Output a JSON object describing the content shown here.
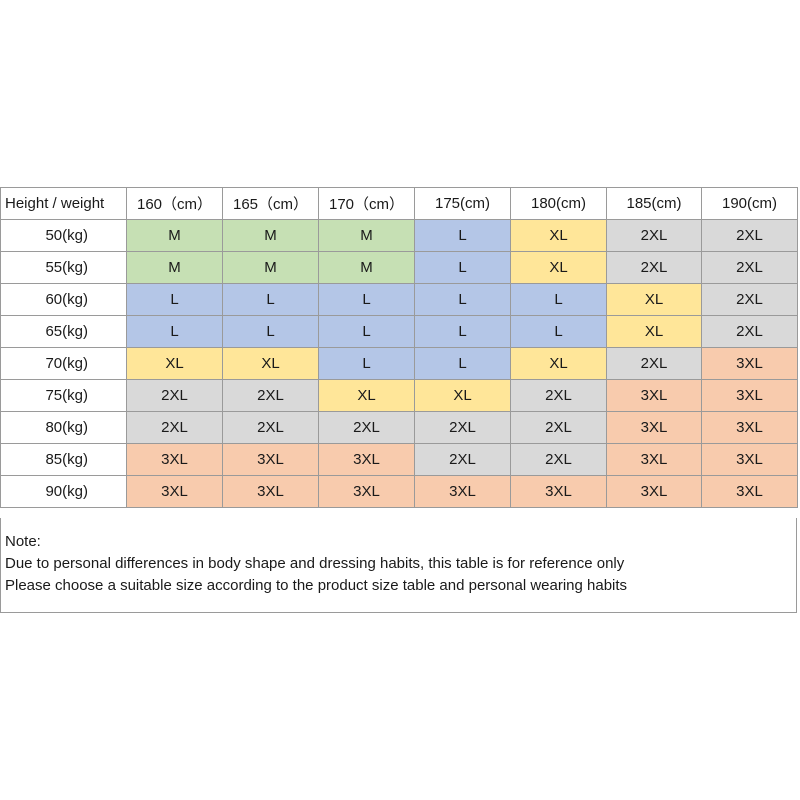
{
  "colors": {
    "M": "#c6e0b4",
    "L": "#b4c6e7",
    "XL": "#ffe699",
    "2XL": "#d9d9d9",
    "3XL": "#f8cbad"
  },
  "table": {
    "corner": "Height / weight",
    "columns": [
      "160（cm）",
      "165（cm）",
      "170（cm）",
      "175(cm)",
      "180(cm)",
      "185(cm)",
      "190(cm)"
    ],
    "rows": [
      {
        "label": "50(kg)",
        "cells": [
          "M",
          "M",
          "M",
          "L",
          "XL",
          "2XL",
          "2XL"
        ]
      },
      {
        "label": "55(kg)",
        "cells": [
          "M",
          "M",
          "M",
          "L",
          "XL",
          "2XL",
          "2XL"
        ]
      },
      {
        "label": "60(kg)",
        "cells": [
          "L",
          "L",
          "L",
          "L",
          "L",
          "XL",
          "2XL"
        ]
      },
      {
        "label": "65(kg)",
        "cells": [
          "L",
          "L",
          "L",
          "L",
          "L",
          "XL",
          "2XL"
        ]
      },
      {
        "label": "70(kg)",
        "cells": [
          "XL",
          "XL",
          "L",
          "L",
          "XL",
          "2XL",
          "3XL"
        ]
      },
      {
        "label": "75(kg)",
        "cells": [
          "2XL",
          "2XL",
          "XL",
          "XL",
          "2XL",
          "3XL",
          "3XL"
        ]
      },
      {
        "label": "80(kg)",
        "cells": [
          "2XL",
          "2XL",
          "2XL",
          "2XL",
          "2XL",
          "3XL",
          "3XL"
        ]
      },
      {
        "label": "85(kg)",
        "cells": [
          "3XL",
          "3XL",
          "3XL",
          "2XL",
          "2XL",
          "3XL",
          "3XL"
        ]
      },
      {
        "label": "90(kg)",
        "cells": [
          "3XL",
          "3XL",
          "3XL",
          "3XL",
          "3XL",
          "3XL",
          "3XL"
        ]
      }
    ]
  },
  "note": {
    "title": "Note:",
    "line1": "Due to personal differences in body shape and dressing habits, this table is for reference only",
    "line2": "Please choose a suitable size according to the product size table and personal wearing habits"
  }
}
